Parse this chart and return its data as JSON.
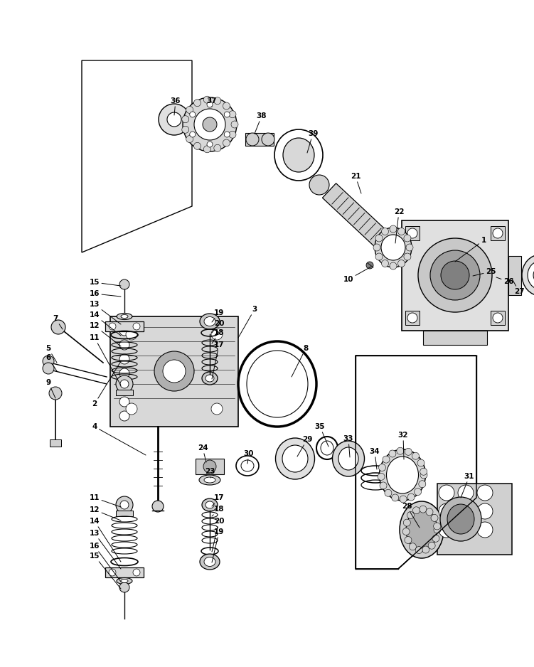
{
  "bg_color": "#ffffff",
  "lc": "#000000",
  "fig_w": 7.51,
  "fig_h": 9.38,
  "dpi": 100,
  "xlim": [
    0,
    751
  ],
  "ylim": [
    0,
    938
  ]
}
